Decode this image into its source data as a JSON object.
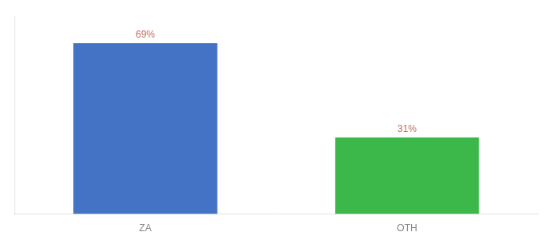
{
  "chart_data": {
    "type": "bar",
    "categories": [
      "ZA",
      "OTH"
    ],
    "values": [
      69,
      31
    ],
    "value_labels": [
      "69%",
      "31%"
    ],
    "colors": [
      "#4472c4",
      "#3cb84a"
    ],
    "ylim": [
      0,
      80
    ],
    "grid": false,
    "tick_labels": "x"
  }
}
